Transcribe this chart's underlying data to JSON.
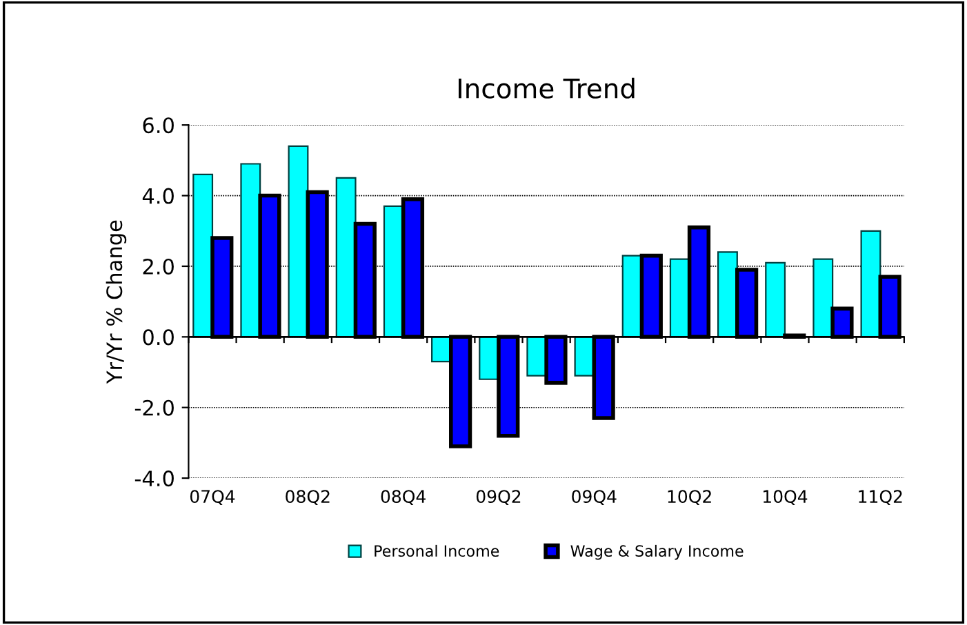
{
  "chart_data": {
    "type": "bar",
    "title": "Income Trend",
    "ylabel": "Yr/Yr % Change",
    "categories": [
      "07Q4",
      null,
      "08Q2",
      null,
      "08Q4",
      null,
      "09Q2",
      null,
      "09Q4",
      null,
      "10Q2",
      null,
      "10Q4",
      null,
      "11Q2"
    ],
    "series": [
      {
        "name": "Personal Income",
        "color": "#00ffff",
        "values": [
          4.6,
          4.9,
          5.4,
          4.5,
          3.7,
          -0.7,
          -1.2,
          -1.1,
          -1.1,
          2.3,
          2.2,
          2.4,
          2.1,
          2.2,
          3.0
        ]
      },
      {
        "name": "Wage & Salary Income",
        "color": "#0000ff",
        "values": [
          2.8,
          4.0,
          4.1,
          3.2,
          3.9,
          -3.1,
          -2.8,
          -1.3,
          -2.3,
          2.3,
          3.1,
          1.9,
          0.04,
          0.8,
          1.7
        ]
      }
    ],
    "ylim": [
      -4.0,
      6.0
    ],
    "yticks": [
      {
        "value": -4,
        "label": "-4.0"
      },
      {
        "value": -2,
        "label": "-2.0"
      },
      {
        "value": 0,
        "label": "0.0"
      },
      {
        "value": 2,
        "label": "2.0"
      },
      {
        "value": 4,
        "label": "4.0"
      },
      {
        "value": 6,
        "label": "6.0"
      }
    ],
    "grid": "y",
    "legend": "bottom"
  }
}
